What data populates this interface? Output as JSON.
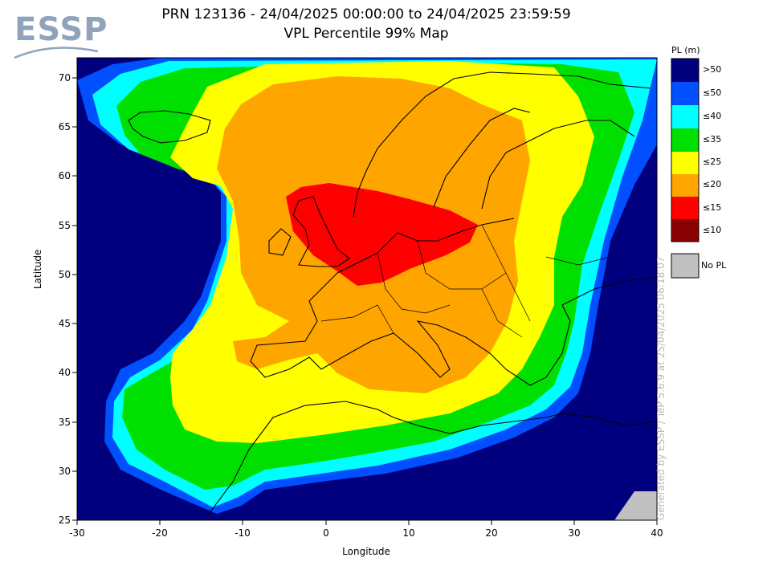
{
  "header": {
    "title_line1": "PRN 123136 - 24/04/2025 00:00:00 to 24/04/2025 23:59:59",
    "title_line2": "VPL Percentile 99% Map"
  },
  "logo": {
    "text": "ESSP"
  },
  "axes": {
    "xlabel": "Longitude",
    "ylabel": "Latitude",
    "x_ticks": [
      "-30",
      "-20",
      "-10",
      "0",
      "10",
      "20",
      "30",
      "40"
    ],
    "y_ticks": [
      "25",
      "30",
      "35",
      "40",
      "45",
      "50",
      "55",
      "60",
      "65",
      "70"
    ],
    "xlim": [
      -30,
      40
    ],
    "ylim": [
      25,
      72
    ]
  },
  "legend": {
    "title": "PL (m)",
    "items": [
      {
        "label": ">50",
        "color": "#00007f"
      },
      {
        "label": "≤50",
        "color": "#0050ff"
      },
      {
        "label": "≤40",
        "color": "#00ffff"
      },
      {
        "label": "≤35",
        "color": "#00e000"
      },
      {
        "label": "≤25",
        "color": "#ffff00"
      },
      {
        "label": "≤20",
        "color": "#ffa500"
      },
      {
        "label": "≤15",
        "color": "#ff0000"
      },
      {
        "label": "≤10",
        "color": "#8b0000"
      }
    ],
    "no_pl": {
      "label": "No PL",
      "color": "#c0c0c0"
    }
  },
  "credit": "Generated by ESSP / TeP 5.6.9 at 25/04/2025 06:18:07"
}
